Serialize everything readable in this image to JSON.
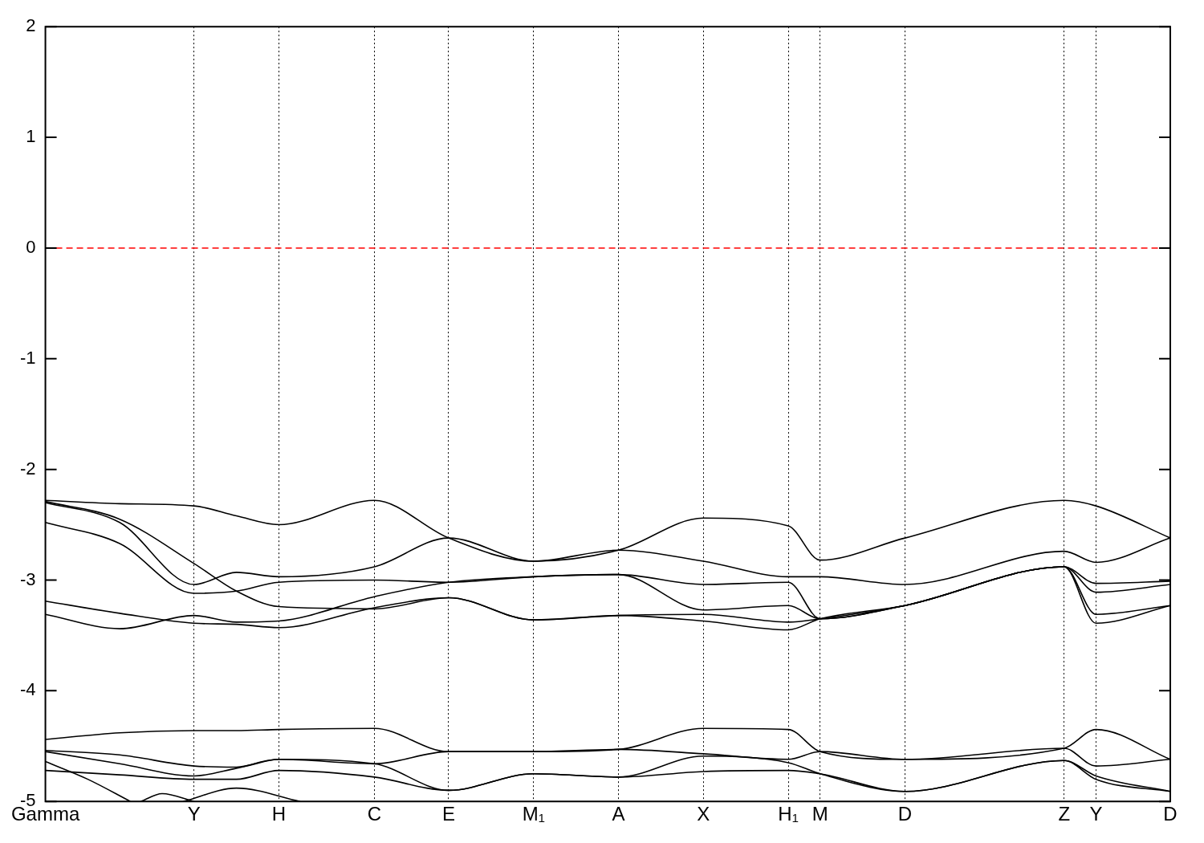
{
  "chart_data": {
    "type": "line",
    "categories": [
      "Gamma",
      null,
      null,
      null,
      null,
      null,
      null,
      null,
      null,
      null,
      null,
      null,
      null,
      null,
      "Y",
      null,
      null,
      null,
      null,
      null,
      null,
      null,
      "H",
      null,
      null,
      null,
      null,
      null,
      null,
      null,
      null,
      "C",
      null,
      null,
      null,
      null,
      null,
      null,
      "E",
      null,
      null,
      null,
      null,
      null,
      null,
      null,
      "M₁",
      null,
      null,
      null,
      null,
      null,
      null,
      null,
      "A",
      null,
      null,
      null,
      null,
      null,
      null,
      null,
      "X",
      null,
      null,
      null,
      null,
      null,
      null,
      null,
      "H₁",
      null,
      null,
      "M",
      null,
      null,
      null,
      null,
      null,
      null,
      null,
      "D",
      null,
      null,
      null,
      null,
      null,
      null,
      null,
      null,
      null,
      null,
      null,
      null,
      null,
      null,
      "Z",
      null,
      null,
      "Y",
      null,
      null,
      null,
      null,
      null,
      null,
      "D"
    ],
    "series": [
      {
        "color": "#000000",
        "values": [
          -2.28,
          null,
          null,
          null,
          null,
          null,
          null,
          -2.31,
          null,
          null,
          null,
          null,
          null,
          null,
          -2.33,
          null,
          null,
          null,
          -2.42,
          null,
          null,
          null,
          -2.5,
          null,
          null,
          null,
          null,
          null,
          null,
          null,
          null,
          -2.28,
          null,
          null,
          null,
          null,
          null,
          null,
          -2.62,
          null,
          null,
          null,
          null,
          null,
          null,
          null,
          -2.83,
          null,
          null,
          null,
          null,
          null,
          null,
          null,
          -2.73,
          null,
          null,
          null,
          null,
          null,
          null,
          null,
          -2.44,
          null,
          null,
          null,
          null,
          null,
          null,
          null,
          -2.51,
          null,
          null,
          -2.82,
          null,
          null,
          null,
          null,
          null,
          null,
          null,
          -2.62,
          null,
          null,
          null,
          null,
          null,
          null,
          null,
          null,
          null,
          null,
          null,
          null,
          null,
          null,
          -2.28,
          null,
          null,
          -2.33,
          null,
          null,
          null,
          null,
          null,
          null,
          -2.62
        ]
      },
      {
        "color": "#000000",
        "values": [
          -2.29,
          null,
          null,
          null,
          null,
          null,
          null,
          -2.45,
          null,
          null,
          null,
          null,
          null,
          null,
          -2.85,
          null,
          null,
          null,
          -3.1,
          null,
          null,
          null,
          -3.24,
          null,
          null,
          null,
          null,
          null,
          null,
          null,
          null,
          -3.26,
          null,
          null,
          null,
          null,
          null,
          null,
          -3.16,
          null,
          null,
          null,
          null,
          null,
          null,
          null,
          -3.36,
          null,
          null,
          null,
          null,
          null,
          null,
          null,
          -3.32,
          null,
          null,
          null,
          null,
          null,
          null,
          null,
          -3.31,
          null,
          null,
          null,
          null,
          null,
          null,
          null,
          -3.38,
          null,
          null,
          -3.35,
          null,
          null,
          null,
          null,
          null,
          null,
          null,
          -3.23,
          null,
          null,
          null,
          null,
          null,
          null,
          null,
          null,
          null,
          null,
          null,
          null,
          null,
          null,
          -2.88,
          null,
          null,
          -3.31,
          null,
          null,
          null,
          null,
          null,
          null,
          -3.23
        ]
      },
      {
        "color": "#000000",
        "values": [
          -2.3,
          null,
          null,
          null,
          null,
          null,
          null,
          -2.48,
          null,
          null,
          null,
          null,
          null,
          null,
          -3.04,
          null,
          null,
          null,
          -2.93,
          null,
          null,
          null,
          -2.97,
          null,
          null,
          null,
          null,
          null,
          null,
          null,
          null,
          -2.88,
          null,
          null,
          null,
          null,
          null,
          null,
          -2.62,
          null,
          null,
          null,
          null,
          null,
          null,
          null,
          -2.83,
          null,
          null,
          null,
          null,
          null,
          null,
          null,
          -2.73,
          null,
          null,
          null,
          null,
          null,
          null,
          null,
          -2.83,
          null,
          null,
          null,
          null,
          null,
          null,
          null,
          -2.97,
          null,
          null,
          -2.97,
          null,
          null,
          null,
          null,
          null,
          null,
          null,
          -3.04,
          null,
          null,
          null,
          null,
          null,
          null,
          null,
          null,
          null,
          null,
          null,
          null,
          null,
          null,
          -2.74,
          null,
          null,
          -2.84,
          null,
          null,
          null,
          null,
          null,
          null,
          -2.62
        ]
      },
      {
        "color": "#000000",
        "values": [
          -2.48,
          null,
          null,
          null,
          null,
          null,
          null,
          -2.67,
          null,
          null,
          null,
          null,
          null,
          null,
          -3.12,
          null,
          null,
          null,
          -3.1,
          null,
          null,
          null,
          -3.02,
          null,
          null,
          null,
          null,
          null,
          null,
          null,
          null,
          -3,
          null,
          null,
          null,
          null,
          null,
          null,
          -3.02,
          null,
          null,
          null,
          null,
          null,
          null,
          null,
          -2.97,
          null,
          null,
          null,
          null,
          null,
          null,
          null,
          -2.95,
          null,
          null,
          null,
          null,
          null,
          null,
          null,
          -3.04,
          null,
          null,
          null,
          null,
          null,
          null,
          null,
          -3.02,
          null,
          null,
          -3.35,
          null,
          null,
          null,
          null,
          null,
          null,
          null,
          -3.23,
          null,
          null,
          null,
          null,
          null,
          null,
          null,
          null,
          null,
          null,
          null,
          null,
          null,
          null,
          -2.88,
          null,
          null,
          -3.03,
          null,
          null,
          null,
          null,
          null,
          null,
          -3.01
        ]
      },
      {
        "color": "#000000",
        "values": [
          -3.19,
          null,
          null,
          null,
          null,
          null,
          null,
          -3.3,
          null,
          null,
          null,
          null,
          null,
          null,
          -3.39,
          null,
          null,
          null,
          -3.4,
          null,
          null,
          null,
          -3.43,
          null,
          null,
          null,
          null,
          null,
          null,
          null,
          null,
          -3.25,
          null,
          null,
          null,
          null,
          null,
          null,
          -3.16,
          null,
          null,
          null,
          null,
          null,
          null,
          null,
          -3.36,
          null,
          null,
          null,
          null,
          null,
          null,
          null,
          -3.32,
          null,
          null,
          null,
          null,
          null,
          null,
          null,
          -3.37,
          null,
          null,
          null,
          null,
          null,
          null,
          null,
          -3.45,
          null,
          null,
          -3.35,
          null,
          null,
          null,
          null,
          null,
          null,
          null,
          -3.23,
          null,
          null,
          null,
          null,
          null,
          null,
          null,
          null,
          null,
          null,
          null,
          null,
          null,
          null,
          -2.88,
          null,
          null,
          -3.39,
          null,
          null,
          null,
          null,
          null,
          null,
          -3.23
        ]
      },
      {
        "color": "#000000",
        "values": [
          -3.31,
          null,
          null,
          null,
          null,
          null,
          null,
          -3.44,
          null,
          null,
          null,
          null,
          null,
          null,
          -3.32,
          null,
          null,
          null,
          -3.38,
          null,
          null,
          null,
          -3.37,
          null,
          null,
          null,
          null,
          null,
          null,
          null,
          null,
          -3.15,
          null,
          null,
          null,
          null,
          null,
          null,
          -3.02,
          null,
          null,
          null,
          null,
          null,
          null,
          null,
          -2.97,
          null,
          null,
          null,
          null,
          null,
          null,
          null,
          -2.95,
          null,
          null,
          null,
          null,
          null,
          null,
          null,
          -3.27,
          null,
          null,
          null,
          null,
          null,
          null,
          null,
          -3.23,
          null,
          null,
          -3.35,
          null,
          null,
          null,
          null,
          null,
          null,
          null,
          -3.23,
          null,
          null,
          null,
          null,
          null,
          null,
          null,
          null,
          null,
          null,
          null,
          null,
          null,
          null,
          -2.88,
          null,
          null,
          -3.11,
          null,
          null,
          null,
          null,
          null,
          null,
          -3.04
        ]
      },
      {
        "color": "#000000",
        "values": [
          -4.44,
          null,
          null,
          null,
          null,
          null,
          null,
          -4.38,
          null,
          null,
          null,
          null,
          null,
          null,
          -4.36,
          null,
          null,
          null,
          -4.36,
          null,
          null,
          null,
          -4.35,
          null,
          null,
          null,
          null,
          null,
          null,
          null,
          null,
          -4.34,
          null,
          null,
          null,
          null,
          null,
          null,
          -4.55,
          null,
          null,
          null,
          null,
          null,
          null,
          null,
          -4.55,
          null,
          null,
          null,
          null,
          null,
          null,
          null,
          -4.53,
          null,
          null,
          null,
          null,
          null,
          null,
          null,
          -4.34,
          null,
          null,
          null,
          null,
          null,
          null,
          null,
          -4.35,
          null,
          null,
          -4.55,
          null,
          null,
          null,
          null,
          null,
          null,
          null,
          -4.62,
          null,
          null,
          null,
          null,
          null,
          null,
          null,
          null,
          null,
          null,
          null,
          null,
          null,
          null,
          -4.52,
          null,
          null,
          -4.35,
          null,
          null,
          null,
          null,
          null,
          null,
          -4.62
        ]
      },
      {
        "color": "#000000",
        "values": [
          -4.54,
          null,
          null,
          null,
          null,
          null,
          null,
          -4.58,
          null,
          null,
          null,
          null,
          null,
          null,
          -4.68,
          null,
          null,
          null,
          -4.69,
          null,
          null,
          null,
          -4.62,
          null,
          null,
          null,
          null,
          null,
          null,
          null,
          null,
          -4.66,
          null,
          null,
          null,
          null,
          null,
          null,
          -4.55,
          null,
          null,
          null,
          null,
          null,
          null,
          null,
          -4.55,
          null,
          null,
          null,
          null,
          null,
          null,
          null,
          -4.53,
          null,
          null,
          null,
          null,
          null,
          null,
          null,
          -4.57,
          null,
          null,
          null,
          null,
          null,
          null,
          null,
          -4.62,
          null,
          null,
          -4.55,
          null,
          null,
          null,
          null,
          null,
          null,
          null,
          -4.62,
          null,
          null,
          null,
          null,
          null,
          null,
          null,
          null,
          null,
          null,
          null,
          null,
          null,
          null,
          -4.52,
          null,
          null,
          -4.68,
          null,
          null,
          null,
          null,
          null,
          null,
          -4.62
        ]
      },
      {
        "color": "#000000",
        "values": [
          -4.55,
          null,
          null,
          null,
          null,
          null,
          null,
          -4.66,
          null,
          null,
          null,
          null,
          null,
          null,
          -4.77,
          null,
          null,
          null,
          -4.7,
          null,
          null,
          null,
          -4.62,
          null,
          null,
          null,
          null,
          null,
          null,
          null,
          null,
          -4.66,
          null,
          null,
          null,
          null,
          null,
          null,
          -4.9,
          null,
          null,
          null,
          null,
          null,
          null,
          null,
          -4.75,
          null,
          null,
          null,
          null,
          null,
          null,
          null,
          -4.78,
          null,
          null,
          null,
          null,
          null,
          null,
          null,
          -4.59,
          null,
          null,
          null,
          null,
          null,
          null,
          null,
          -4.65,
          null,
          null,
          -4.75,
          null,
          null,
          null,
          null,
          null,
          null,
          null,
          -4.91,
          null,
          null,
          null,
          null,
          null,
          null,
          null,
          null,
          null,
          null,
          null,
          null,
          null,
          null,
          -4.63,
          null,
          null,
          -4.77,
          null,
          null,
          null,
          null,
          null,
          null,
          -4.91
        ]
      },
      {
        "color": "#000000",
        "values": [
          -4.72,
          null,
          null,
          null,
          null,
          null,
          null,
          -4.76,
          null,
          null,
          null,
          null,
          null,
          null,
          -4.8,
          null,
          null,
          null,
          -4.8,
          null,
          null,
          null,
          -4.72,
          null,
          null,
          null,
          null,
          null,
          null,
          null,
          null,
          -4.78,
          null,
          null,
          null,
          null,
          null,
          null,
          -4.9,
          null,
          null,
          null,
          null,
          null,
          null,
          null,
          -4.75,
          null,
          null,
          null,
          null,
          null,
          null,
          null,
          -4.78,
          null,
          null,
          null,
          null,
          null,
          null,
          null,
          -4.73,
          null,
          null,
          null,
          null,
          null,
          null,
          null,
          -4.72,
          null,
          null,
          -4.75,
          null,
          null,
          null,
          null,
          null,
          null,
          null,
          -4.91,
          null,
          null,
          null,
          null,
          null,
          null,
          null,
          null,
          null,
          null,
          null,
          null,
          null,
          null,
          -4.63,
          null,
          null,
          -4.8,
          null,
          null,
          null,
          null,
          null,
          null,
          -4.91
        ]
      },
      {
        "color": "#000000",
        "values": [
          -4.64,
          null,
          null,
          null,
          -4.8,
          null,
          null,
          null,
          -5.0,
          null,
          null,
          null,
          null,
          null,
          null,
          null,
          null,
          null,
          null,
          null,
          null,
          null,
          null,
          null,
          null,
          null,
          null,
          null,
          null,
          null,
          null,
          null,
          null,
          null,
          null,
          null,
          null,
          null,
          null,
          null,
          null,
          null,
          null,
          null,
          null,
          null,
          null,
          null,
          null,
          null,
          null,
          null,
          null,
          null,
          null,
          null,
          null,
          null,
          null,
          null,
          null,
          null,
          null,
          null,
          null,
          null,
          null,
          null,
          null,
          null,
          null,
          null,
          null,
          null,
          null,
          null,
          null,
          null,
          null,
          null,
          null,
          null,
          null,
          null,
          null,
          null,
          null,
          null,
          null,
          null,
          null,
          null,
          null,
          null,
          null,
          null,
          null,
          null,
          null,
          null,
          null,
          null,
          null,
          null,
          null,
          null,
          null
        ]
      },
      {
        "color": "#000000",
        "values": [
          null,
          null,
          null,
          null,
          null,
          null,
          null,
          null,
          null,
          -5.0,
          null,
          -4.93,
          null,
          null,
          -5.0,
          null,
          null,
          null,
          null,
          null,
          null,
          null,
          null,
          null,
          null,
          null,
          null,
          null,
          null,
          null,
          null,
          null,
          null,
          null,
          null,
          null,
          null,
          null,
          null,
          null,
          null,
          null,
          null,
          null,
          null,
          null,
          null,
          null,
          null,
          null,
          null,
          null,
          null,
          null,
          null,
          null,
          null,
          null,
          null,
          null,
          null,
          null,
          null,
          null,
          null,
          null,
          null,
          null,
          null,
          null,
          null,
          null,
          null,
          null,
          null,
          null,
          null,
          null,
          null,
          null,
          null,
          null,
          null,
          null,
          null,
          null,
          null,
          null,
          null,
          null,
          null,
          null,
          null,
          null,
          null,
          null,
          null,
          null,
          null,
          null,
          null,
          null,
          null,
          null,
          null,
          null,
          null
        ]
      },
      {
        "color": "#000000",
        "values": [
          null,
          null,
          null,
          null,
          null,
          null,
          null,
          null,
          null,
          null,
          null,
          null,
          null,
          -5.0,
          null,
          null,
          null,
          null,
          -4.88,
          null,
          null,
          null,
          null,
          null,
          -5.0,
          null,
          null,
          null,
          null,
          null,
          null,
          null,
          null,
          null,
          null,
          null,
          null,
          null,
          null,
          null,
          null,
          null,
          null,
          null,
          null,
          null,
          null,
          null,
          null,
          null,
          null,
          null,
          null,
          null,
          null,
          null,
          null,
          null,
          null,
          null,
          null,
          null,
          null,
          null,
          null,
          null,
          null,
          null,
          null,
          null,
          null,
          null,
          null,
          null,
          null,
          null,
          null,
          null,
          null,
          null,
          null,
          null,
          null,
          null,
          null,
          null,
          null,
          null,
          null,
          null,
          null,
          null,
          null,
          null,
          null,
          null,
          null,
          null,
          null,
          null,
          null,
          null,
          null,
          null,
          null,
          null,
          null
        ]
      }
    ],
    "ylim": [
      -5,
      2
    ],
    "yticks": [
      -5,
      -4,
      -3,
      -2,
      -1,
      0,
      1,
      2
    ],
    "grid": "x",
    "legend": false,
    "ref_lines": [
      {
        "axis": "y",
        "value": 0,
        "color": "#ff0000",
        "line_style": "dashed"
      }
    ]
  }
}
